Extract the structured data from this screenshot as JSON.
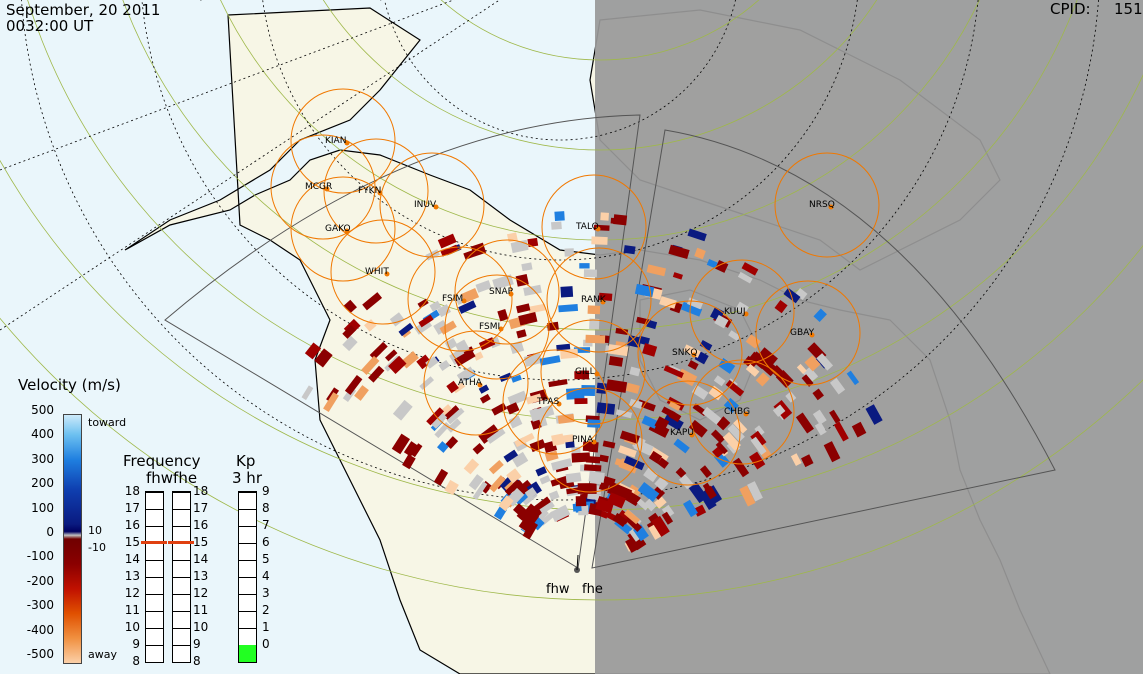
{
  "header": {
    "date": "September, 20 2011",
    "time": "0032:00 UT",
    "cpid_label": "CPID:",
    "cpid_value": "151"
  },
  "velocity_legend": {
    "title": "Velocity (m/s)",
    "ticks": [
      "500",
      "400",
      "300",
      "200",
      "100",
      "0",
      "-100",
      "-200",
      "-300",
      "-400",
      "-500"
    ],
    "toward": "toward",
    "away": "away",
    "pos_thresh": "10",
    "neg_thresh": "-10"
  },
  "frequency_legend": {
    "title": "Frequency",
    "radars": "fhwfhe",
    "ticks": [
      "18",
      "17",
      "16",
      "15",
      "14",
      "13",
      "12",
      "11",
      "10",
      "9",
      "8"
    ],
    "fhw_mhz": 15,
    "fhe_mhz": 15
  },
  "kp_legend": {
    "title": "Kp",
    "subtitle": "3 hr",
    "ticks": [
      "9",
      "8",
      "7",
      "6",
      "5",
      "4",
      "3",
      "2",
      "1",
      "0"
    ],
    "value": 0.7
  },
  "stations": [
    {
      "code": "KIAN"
    },
    {
      "code": "MCGR"
    },
    {
      "code": "FYKN"
    },
    {
      "code": "INUV"
    },
    {
      "code": "GAKO"
    },
    {
      "code": "TALO"
    },
    {
      "code": "WHIT"
    },
    {
      "code": "FSIM"
    },
    {
      "code": "SNAP"
    },
    {
      "code": "RANK"
    },
    {
      "code": "FSMI"
    },
    {
      "code": "NRSQ"
    },
    {
      "code": "KUUJ"
    },
    {
      "code": "GBAY"
    },
    {
      "code": "SNKQ"
    },
    {
      "code": "GILL"
    },
    {
      "code": "ATHA"
    },
    {
      "code": "TPAS"
    },
    {
      "code": "CHBG"
    },
    {
      "code": "KAPU"
    },
    {
      "code": "PINA"
    }
  ],
  "radar_sites": {
    "west": "fhw",
    "east": "fhe"
  },
  "colors": {
    "land": "#f7f6e6",
    "ocean": "#eaf6fb",
    "night": "#999999",
    "station": "#f07800",
    "ring": "#f07800"
  }
}
